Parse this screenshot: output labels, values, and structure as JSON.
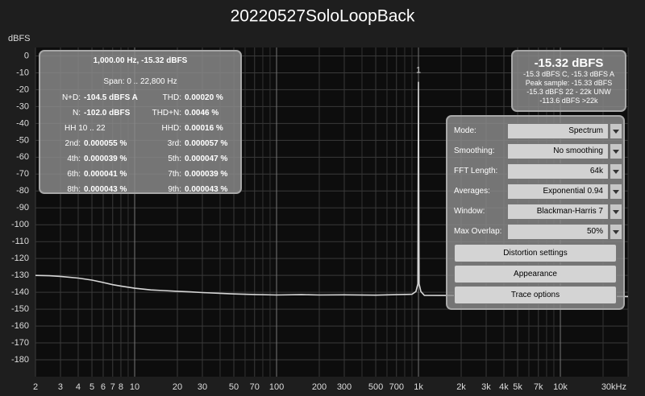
{
  "chart_data": {
    "type": "line",
    "title": "20220527SoloLoopBack",
    "y_label": "dBFS",
    "log_x": true,
    "xlim": [
      2,
      30000
    ],
    "ylim": [
      -190,
      5
    ],
    "xticks": [
      2,
      3,
      4,
      5,
      6,
      7,
      8,
      10,
      20,
      30,
      50,
      70,
      100,
      200,
      300,
      500,
      700,
      {
        "value": 1000,
        "label": "1k"
      },
      {
        "value": 2000,
        "label": "2k"
      },
      {
        "value": 3000,
        "label": "3k"
      },
      {
        "value": 4000,
        "label": "4k"
      },
      {
        "value": 5000,
        "label": "5k"
      },
      {
        "value": 7000,
        "label": "7k"
      },
      {
        "value": 10000,
        "label": "10k"
      },
      {
        "value": 30000,
        "label": "30kHz"
      }
    ],
    "x_minor_ticks": [
      9,
      40,
      60,
      80,
      90,
      400,
      600,
      800,
      900,
      6000,
      8000,
      9000,
      20000
    ],
    "yticks": [
      0,
      -10,
      -20,
      -30,
      -40,
      -50,
      -60,
      -70,
      -80,
      -90,
      -100,
      -110,
      -120,
      -130,
      -140,
      -150,
      -160,
      -170,
      -180
    ],
    "grid": true,
    "x": [
      2,
      2.5,
      3,
      4,
      5,
      6,
      7,
      8,
      10,
      13,
      16,
      20,
      25,
      30,
      40,
      50,
      70,
      100,
      150,
      200,
      300,
      500,
      700,
      900,
      960,
      990,
      1000,
      1010,
      1040,
      1100,
      1500,
      2000,
      3000,
      5000,
      10000,
      20000,
      30000
    ],
    "series": [
      {
        "name": "Trace",
        "color": "#d6d6d6",
        "values": [
          -130,
          -130.2,
          -130.6,
          -131.6,
          -132.8,
          -134.2,
          -135.5,
          -136.3,
          -137.6,
          -138.6,
          -139,
          -139.4,
          -139.8,
          -140.2,
          -140.6,
          -141,
          -141.3,
          -141.6,
          -141.4,
          -141.6,
          -141.5,
          -141.7,
          -141.4,
          -141.2,
          -139.5,
          -135,
          -15.32,
          -135,
          -139.5,
          -141.8,
          -141.9,
          -142,
          -142,
          -142.2,
          -142.3,
          -142.4,
          -142.5
        ]
      }
    ],
    "annotations": [
      {
        "text": "1",
        "x": 1000,
        "y": -15.32
      }
    ]
  },
  "panels": {
    "info": {
      "header": [
        "1,000.00 Hz, -15.32 dBFS",
        "Span: 0 .. 22,800 Hz"
      ],
      "items": [
        {
          "label": "N+D:",
          "value": "-104.5 dBFS A"
        },
        {
          "label": "THD:",
          "value": "0.00020 %"
        },
        {
          "label": "N:",
          "value": "-102.0 dBFS"
        },
        {
          "label": "THD+N:",
          "value": "0.0046 %"
        },
        {
          "label": "HH 10 .. 22"
        },
        {
          "label": "HHD:",
          "value": "0.00016 %"
        },
        {
          "label": "2nd:",
          "value": "0.000055 %"
        },
        {
          "label": "3rd:",
          "value": "0.000057 %"
        },
        {
          "label": "4th:",
          "value": "0.000039 %"
        },
        {
          "label": "5th:",
          "value": "0.000047 %"
        },
        {
          "label": "6th:",
          "value": "0.000041 %"
        },
        {
          "label": "7th:",
          "value": "0.000039 %"
        },
        {
          "label": "8th:",
          "value": "0.000043 %"
        },
        {
          "label": "9th:",
          "value": "0.000043 %"
        }
      ]
    },
    "level": {
      "big": "-15.32 dBFS",
      "lines": [
        "-15.3 dBFS C, -15.3 dBFS A",
        "Peak sample: -15.33 dBFS",
        "-15.3 dBFS 22 - 22k UNW",
        "-113.6 dBFS >22k"
      ]
    },
    "controls": {
      "dropdowns": [
        {
          "label": "Mode:",
          "value": "Spectrum"
        },
        {
          "label": "Smoothing:",
          "value": "No  smoothing"
        },
        {
          "label": "FFT Length:",
          "value": "64k"
        },
        {
          "label": "Averages:",
          "value": "Exponential 0.94"
        },
        {
          "label": "Window:",
          "value": "Blackman-Harris 7"
        },
        {
          "label": "Max Overlap:",
          "value": "50%"
        }
      ],
      "buttons": [
        "Distortion settings",
        "Appearance",
        "Trace options"
      ]
    }
  }
}
